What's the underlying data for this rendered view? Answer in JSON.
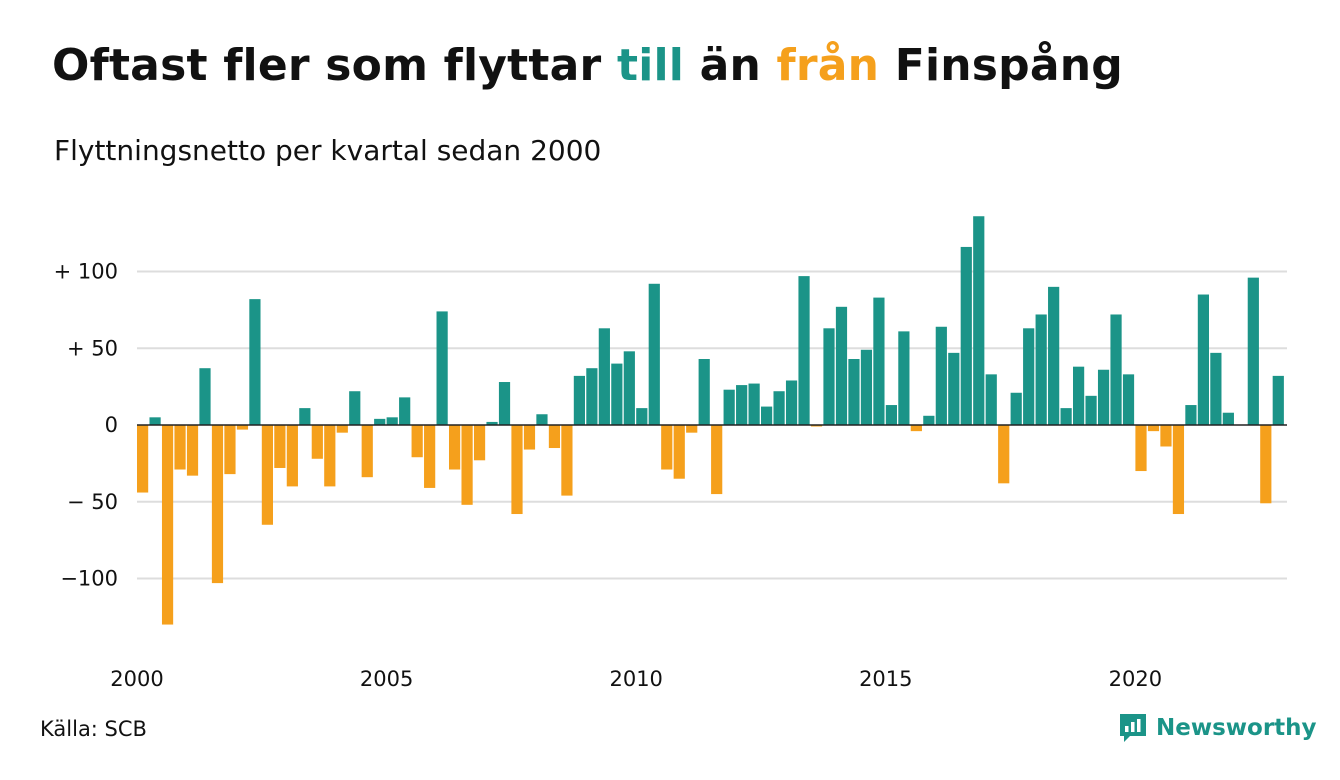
{
  "title": {
    "part1": "Oftast fler som flyttar ",
    "till": "till",
    "part2": " än ",
    "fran": "från",
    "part3": " Finspång"
  },
  "subtitle": "Flyttningsnetto per kvartal sedan 2000",
  "source": "Källa: SCB",
  "brand": {
    "name": "Newsworthy",
    "icon": "newsworthy-logo-icon"
  },
  "colors": {
    "positive": "#1b9488",
    "negative": "#f5a01c",
    "grid": "#dddddd",
    "text": "#111111"
  },
  "chart_data": {
    "type": "bar",
    "title": "Oftast fler som flyttar till än från Finspång",
    "subtitle": "Flyttningsnetto per kvartal sedan 2000",
    "xlabel": "",
    "ylabel": "",
    "ylim": [
      -145,
      145
    ],
    "grid": true,
    "yticks": [
      {
        "value": 100,
        "label": "+ 100"
      },
      {
        "value": 50,
        "label": "+  50"
      },
      {
        "value": 0,
        "label": "0"
      },
      {
        "value": -50,
        "label": "− 50"
      },
      {
        "value": -100,
        "label": "−100"
      }
    ],
    "xticks": [
      {
        "index": 0,
        "label": "2000"
      },
      {
        "index": 20,
        "label": "2005"
      },
      {
        "index": 40,
        "label": "2010"
      },
      {
        "index": 60,
        "label": "2015"
      },
      {
        "index": 80,
        "label": "2020"
      }
    ],
    "start_period": "2000 Q1",
    "frequency": "quarterly",
    "values": [
      -44,
      5,
      -130,
      -29,
      -33,
      37,
      -103,
      -32,
      -3,
      82,
      -65,
      -28,
      -40,
      11,
      -22,
      -40,
      -5,
      22,
      -34,
      4,
      5,
      18,
      -21,
      -41,
      74,
      -29,
      -52,
      -23,
      2,
      28,
      -58,
      -16,
      7,
      -15,
      -46,
      32,
      37,
      63,
      40,
      48,
      11,
      92,
      -29,
      -35,
      -5,
      43,
      -45,
      23,
      26,
      27,
      12,
      22,
      29,
      97,
      -1,
      63,
      77,
      43,
      49,
      83,
      13,
      61,
      -4,
      6,
      64,
      47,
      116,
      136,
      33,
      -38,
      21,
      63,
      72,
      90,
      11,
      38,
      19,
      36,
      72,
      33,
      -30,
      -4,
      -14,
      -58,
      13,
      85,
      47,
      8,
      0,
      96,
      -51,
      32
    ]
  }
}
